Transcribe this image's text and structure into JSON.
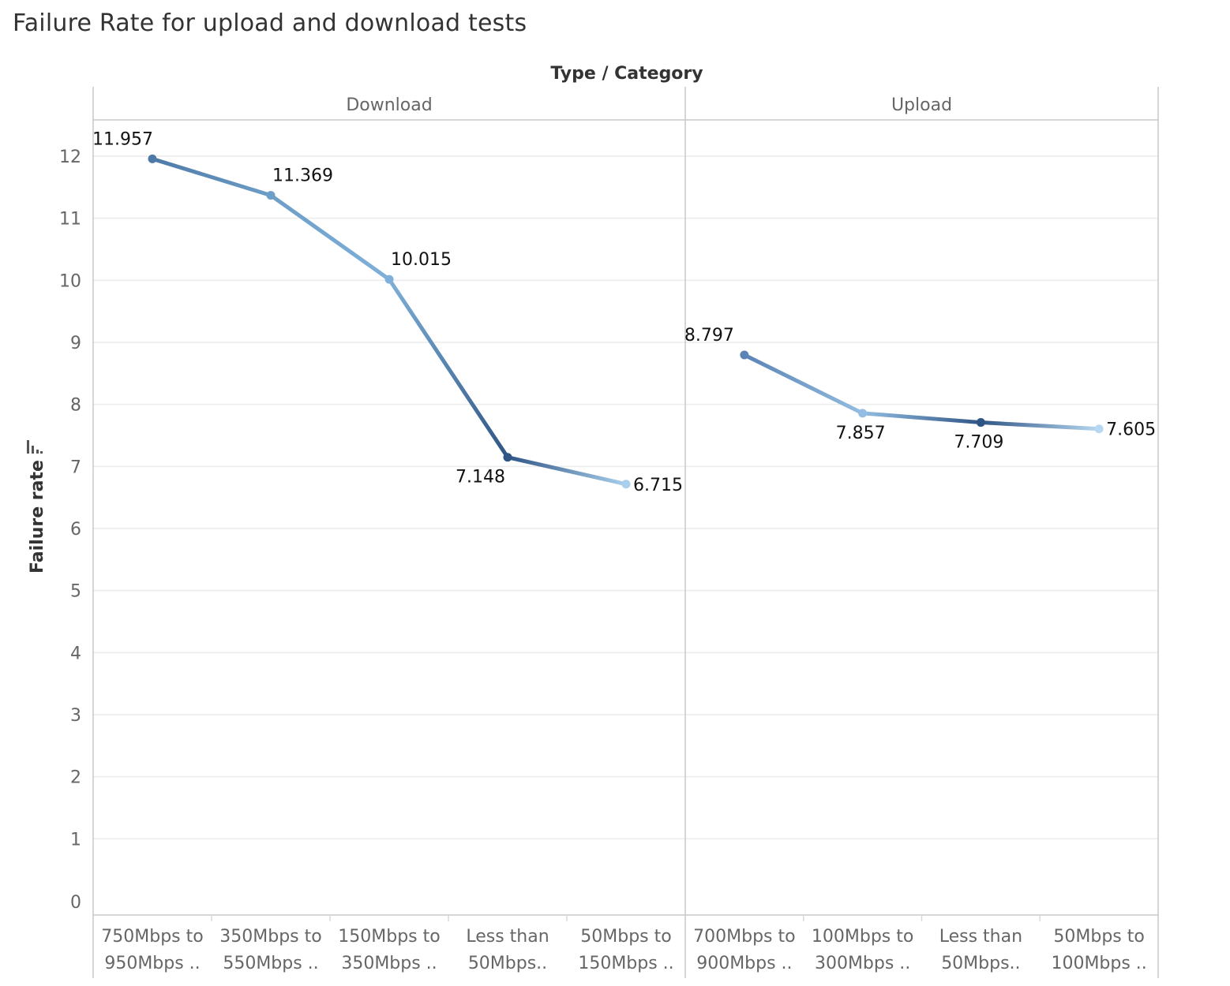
{
  "title": "Failure Rate for upload and download tests",
  "chart_data": {
    "type": "line",
    "header": "Type / Category",
    "ylabel": "Failure rate",
    "ylim": [
      0,
      12.4
    ],
    "yticks": [
      "0",
      "1",
      "2",
      "3",
      "4",
      "5",
      "6",
      "7",
      "8",
      "9",
      "10",
      "11",
      "12"
    ],
    "grid": true,
    "panels": [
      {
        "name": "Download",
        "categories": [
          [
            "750Mbps to",
            "950Mbps .."
          ],
          [
            "350Mbps to",
            "550Mbps .."
          ],
          [
            "150Mbps to",
            "350Mbps .."
          ],
          [
            "Less than",
            "50Mbps.."
          ],
          [
            "50Mbps to",
            "150Mbps .."
          ]
        ],
        "values": [
          11.957,
          11.369,
          10.015,
          7.148,
          6.715
        ],
        "labels": [
          "11.957",
          "11.369",
          "10.015",
          "7.148",
          "6.715"
        ],
        "label_pos": [
          "above-left",
          "above-right",
          "above-right",
          "below-left",
          "right"
        ],
        "colors": [
          "#4e79a7",
          "#6d9ec8",
          "#7fb0d9",
          "#2f5585",
          "#a9cfed"
        ]
      },
      {
        "name": "Upload",
        "categories": [
          [
            "700Mbps to",
            "900Mbps .."
          ],
          [
            "100Mbps to",
            "300Mbps .."
          ],
          [
            "Less than",
            "50Mbps.."
          ],
          [
            "50Mbps to",
            "100Mbps .."
          ]
        ],
        "values": [
          8.797,
          7.857,
          7.709,
          7.605
        ],
        "labels": [
          "8.797",
          "7.857",
          "7.709",
          "7.605"
        ],
        "label_pos": [
          "above-left",
          "below",
          "below",
          "right"
        ],
        "colors": [
          "#5a84b5",
          "#93bde2",
          "#2f5585",
          "#b7d8f2"
        ]
      }
    ]
  }
}
